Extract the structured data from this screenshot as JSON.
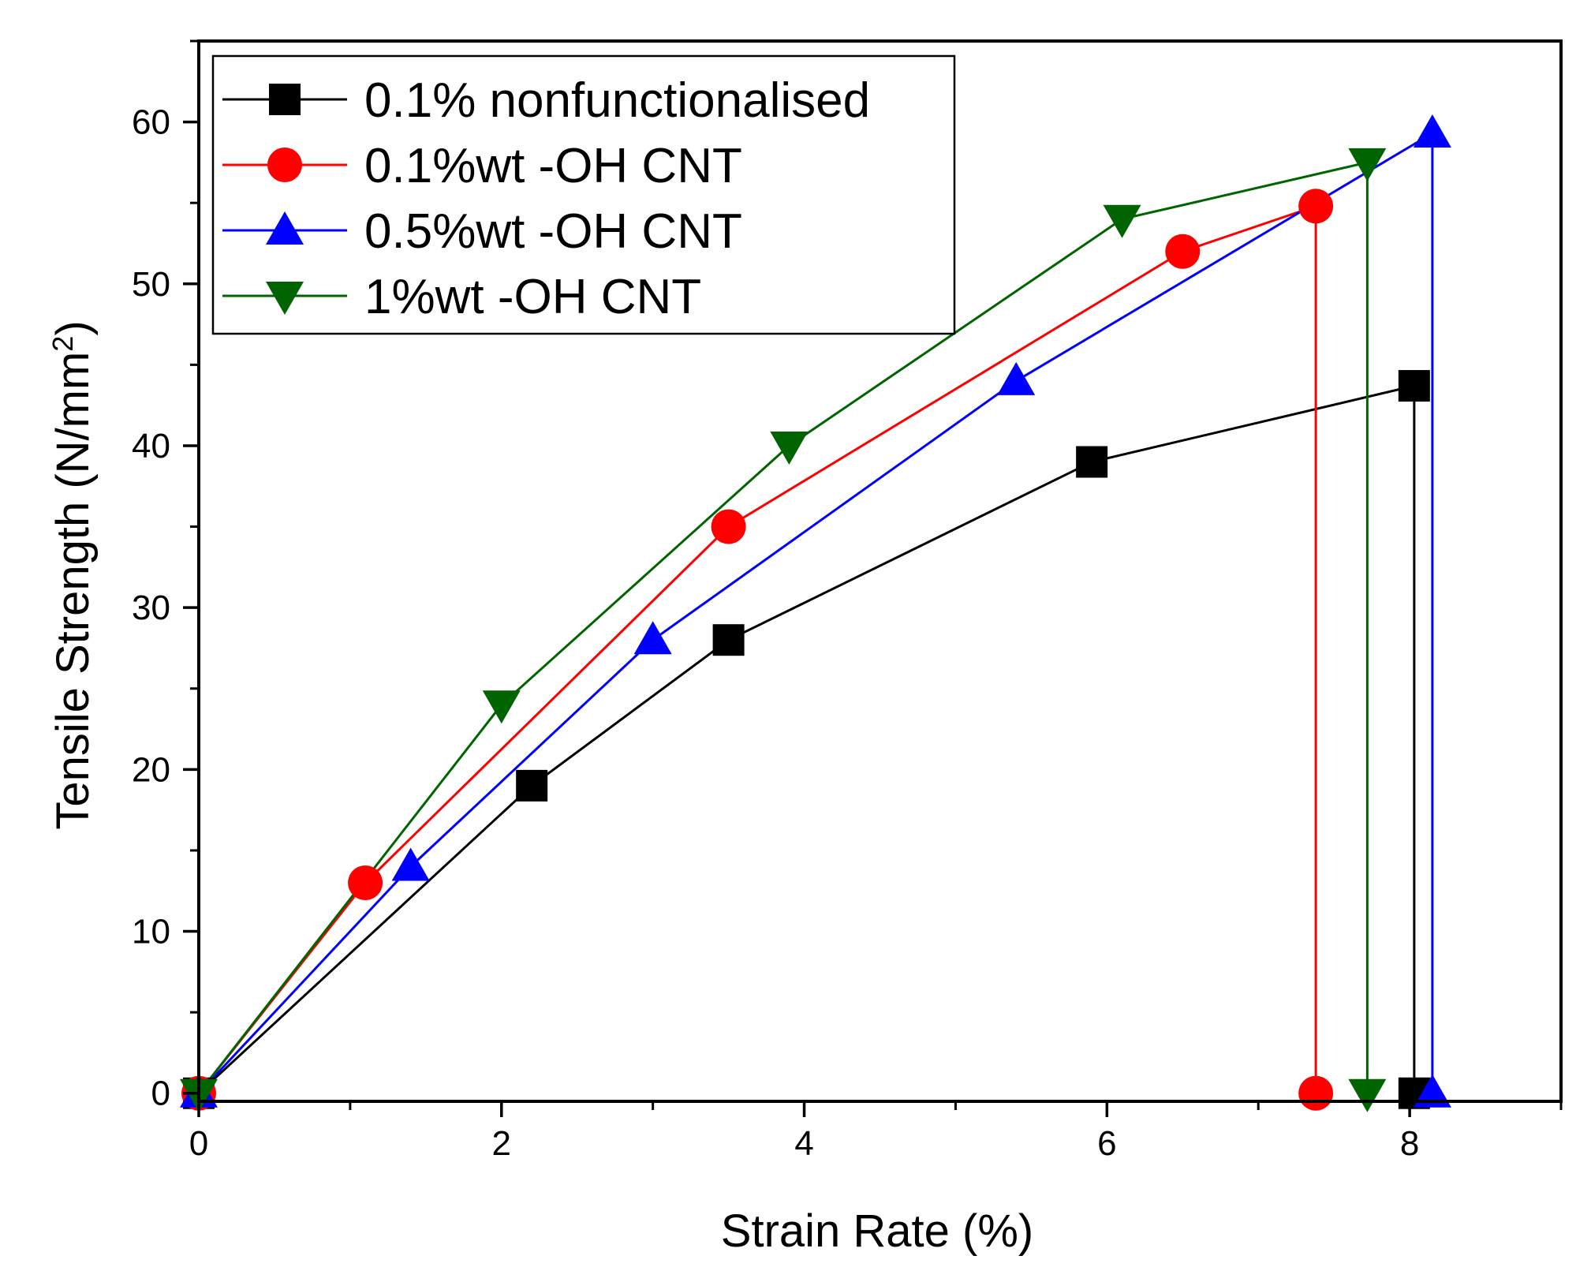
{
  "chart_data": {
    "type": "line",
    "title": "",
    "xlabel": "Strain Rate (%)",
    "ylabel_main": "Tensile Strength (N/mm",
    "ylabel_sup": "2",
    "ylabel_end": ")",
    "xlim": [
      0,
      9
    ],
    "ylim": [
      -0.5,
      65
    ],
    "xticks": [
      0,
      2,
      4,
      6,
      8
    ],
    "xtick_labels": [
      "0",
      "2",
      "4",
      "6",
      "8"
    ],
    "yticks": [
      0,
      10,
      20,
      30,
      40,
      50,
      60
    ],
    "ytick_labels": [
      "0",
      "10",
      "20",
      "30",
      "40",
      "50",
      "60"
    ],
    "legend_position": "top-left",
    "series": [
      {
        "name": "0.1% nonfunctionalised",
        "color": "#000000",
        "marker": "square",
        "x": [
          0,
          2.2,
          3.5,
          5.9,
          8.03,
          8.03
        ],
        "y": [
          0,
          19,
          28,
          39,
          43.7,
          0
        ]
      },
      {
        "name": "0.1%wt -OH CNT",
        "color": "#ff0000",
        "marker": "circle",
        "x": [
          0,
          1.1,
          3.5,
          6.5,
          7.38,
          7.38
        ],
        "y": [
          0,
          13,
          35,
          52,
          54.8,
          0
        ]
      },
      {
        "name": "0.5%wt -OH CNT",
        "color": "#0000ff",
        "marker": "triangle-up",
        "x": [
          0,
          1.4,
          3.0,
          5.4,
          8.15,
          8.15
        ],
        "y": [
          0,
          14,
          28,
          44,
          59.3,
          0
        ]
      },
      {
        "name": "1%wt -OH CNT",
        "color": "#006400",
        "marker": "triangle-down",
        "x": [
          0,
          2.0,
          3.9,
          6.1,
          7.72,
          7.72
        ],
        "y": [
          0,
          24,
          40,
          54,
          57.5,
          0
        ]
      }
    ]
  }
}
